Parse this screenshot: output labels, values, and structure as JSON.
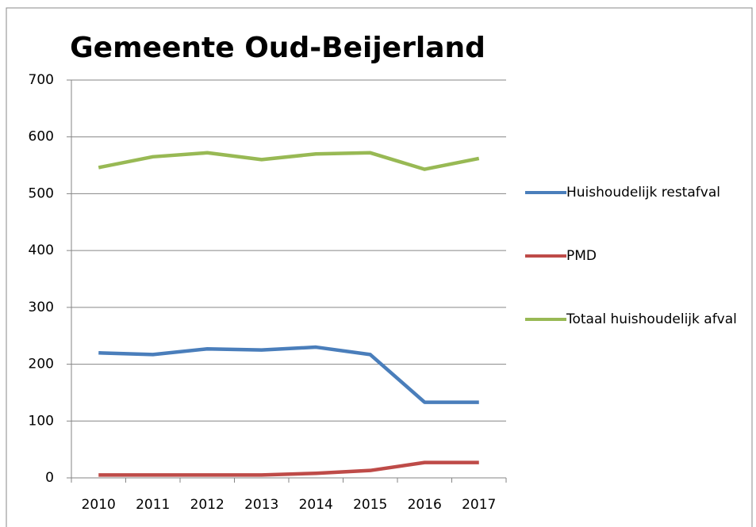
{
  "chart_data": {
    "type": "line",
    "title": "Gemeente Oud-Beijerland",
    "categories": [
      "2010",
      "2011",
      "2012",
      "2013",
      "2014",
      "2015",
      "2016",
      "2017"
    ],
    "series": [
      {
        "name": "Huishoudelijk restafval",
        "color": "#4a7ebb",
        "values": [
          220,
          217,
          227,
          225,
          230,
          217,
          133,
          133
        ]
      },
      {
        "name": "PMD",
        "color": "#be4b48",
        "values": [
          5,
          5,
          5,
          5,
          8,
          13,
          27,
          27
        ]
      },
      {
        "name": "Totaal huishoudelijk afval",
        "color": "#98b954",
        "values": [
          546,
          565,
          572,
          560,
          570,
          572,
          543,
          562
        ]
      }
    ],
    "ylim": [
      0,
      700
    ],
    "yticks": [
      0,
      100,
      200,
      300,
      400,
      500,
      600,
      700
    ],
    "grid": true,
    "legend": "right"
  }
}
